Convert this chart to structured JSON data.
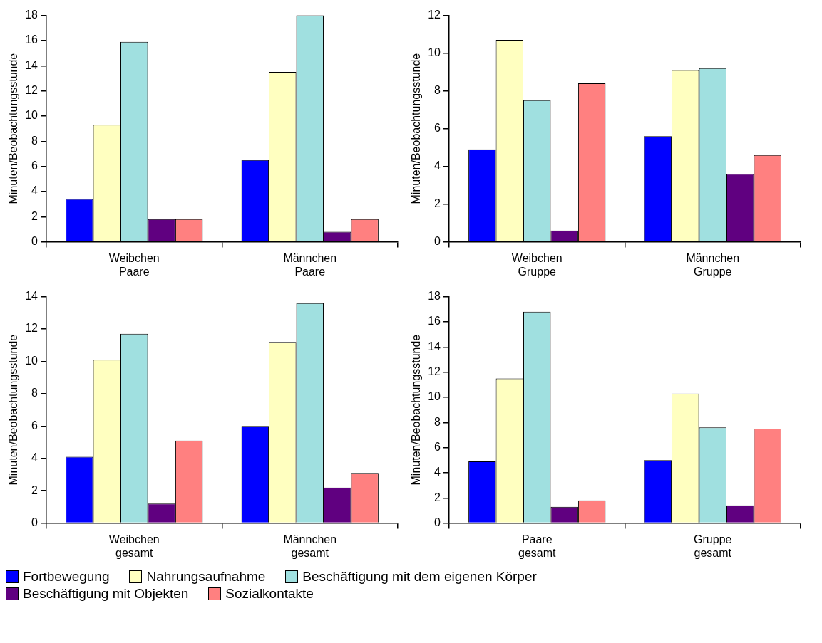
{
  "chart_data": [
    {
      "type": "bar",
      "ylabel": "Minuten/Beobachtungsstunde",
      "categories": [
        "Weibchen\nPaare",
        "Männchen\nPaare"
      ],
      "ylim": [
        0,
        18
      ],
      "yticks": [
        0,
        2,
        4,
        6,
        8,
        10,
        12,
        14,
        16,
        18
      ],
      "grid": false,
      "legend": "bottom",
      "series": [
        {
          "name": "Fortbewegung",
          "color": "#0000ff",
          "values": [
            3.4,
            6.5
          ]
        },
        {
          "name": "Nahrungsaufnahme",
          "color": "#ffffc0",
          "values": [
            9.3,
            13.5
          ]
        },
        {
          "name": "Beschäftigung mit dem eigenen Körper",
          "color": "#a0e0e0",
          "values": [
            15.9,
            18
          ]
        },
        {
          "name": "Beschäftigung mit Objekten",
          "color": "#600080",
          "values": [
            1.8,
            0.8
          ]
        },
        {
          "name": "Sozialkontakte",
          "color": "#ff8080",
          "values": [
            1.8,
            1.8
          ]
        }
      ]
    },
    {
      "type": "bar",
      "ylabel": "Minuten/Beobachtungsstunde",
      "categories": [
        "Weibchen\nGruppe",
        "Männchen\nGruppe"
      ],
      "ylim": [
        0,
        12
      ],
      "yticks": [
        0,
        2,
        4,
        6,
        8,
        10,
        12
      ],
      "grid": false,
      "series": [
        {
          "color": "#0000ff",
          "values": [
            4.9,
            5.6
          ]
        },
        {
          "color": "#ffffc0",
          "values": [
            10.7,
            9.1
          ]
        },
        {
          "color": "#a0e0e0",
          "values": [
            7.5,
            9.2
          ]
        },
        {
          "color": "#600080",
          "values": [
            0.6,
            3.6
          ]
        },
        {
          "color": "#ff8080",
          "values": [
            8.4,
            4.6
          ]
        }
      ]
    },
    {
      "type": "bar",
      "ylabel": "Minuten/Beobachtungsstunde",
      "categories": [
        "Weibchen\ngesamt",
        "Männchen\ngesamt"
      ],
      "ylim": [
        0,
        14
      ],
      "yticks": [
        0,
        2,
        4,
        6,
        8,
        10,
        12,
        14
      ],
      "grid": false,
      "series": [
        {
          "color": "#0000ff",
          "values": [
            4.1,
            6.0
          ]
        },
        {
          "color": "#ffffc0",
          "values": [
            10.1,
            11.2
          ]
        },
        {
          "color": "#a0e0e0",
          "values": [
            11.7,
            13.6
          ]
        },
        {
          "color": "#600080",
          "values": [
            1.2,
            2.2
          ]
        },
        {
          "color": "#ff8080",
          "values": [
            5.1,
            3.1
          ]
        }
      ]
    },
    {
      "type": "bar",
      "ylabel": "Minuten/Beobachtungsstunde",
      "categories": [
        "Paare\ngesamt",
        "Gruppe\ngesamt"
      ],
      "ylim": [
        0,
        18
      ],
      "yticks": [
        0,
        2,
        4,
        6,
        8,
        10,
        12,
        14,
        16,
        18
      ],
      "grid": false,
      "series": [
        {
          "color": "#0000ff",
          "values": [
            4.9,
            5.0
          ]
        },
        {
          "color": "#ffffc0",
          "values": [
            11.5,
            10.3
          ]
        },
        {
          "color": "#a0e0e0",
          "values": [
            16.8,
            7.6
          ]
        },
        {
          "color": "#600080",
          "values": [
            1.3,
            1.4
          ]
        },
        {
          "color": "#ff8080",
          "values": [
            1.8,
            7.5
          ]
        }
      ]
    }
  ]
}
